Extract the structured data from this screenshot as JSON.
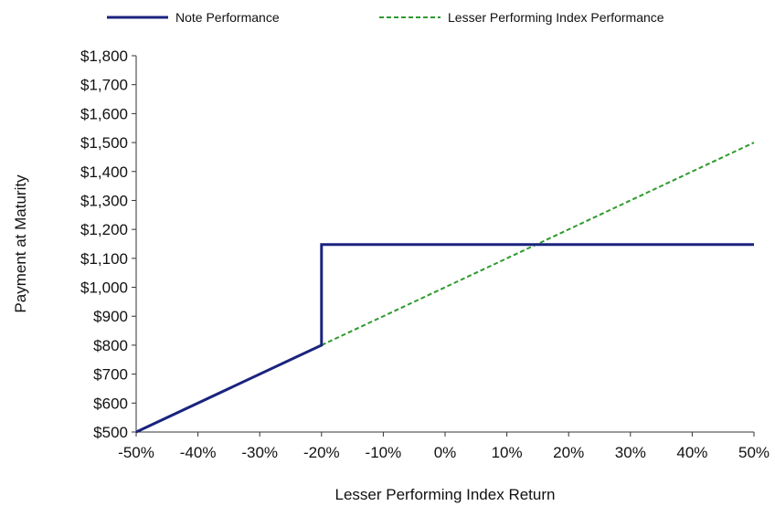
{
  "chart_data": {
    "type": "line",
    "xlabel": "Lesser Performing Index Return",
    "ylabel": "Payment at Maturity",
    "xlim": [
      -50,
      50
    ],
    "ylim": [
      500,
      1800
    ],
    "x_ticks": [
      -50,
      -40,
      -30,
      -20,
      -10,
      0,
      10,
      20,
      30,
      40,
      50
    ],
    "x_tick_labels": [
      "-50%",
      "-40%",
      "-30%",
      "-20%",
      "-10%",
      "0%",
      "10%",
      "20%",
      "30%",
      "40%",
      "50%"
    ],
    "y_ticks": [
      500,
      600,
      700,
      800,
      900,
      1000,
      1100,
      1200,
      1300,
      1400,
      1500,
      1600,
      1700,
      1800
    ],
    "y_tick_labels": [
      "$500",
      "$600",
      "$700",
      "$800",
      "$900",
      "$1,000",
      "$1,100",
      "$1,200",
      "$1,300",
      "$1,400",
      "$1,500",
      "$1,600",
      "$1,700",
      "$1,800"
    ],
    "grid": false,
    "legend_position": "top",
    "series": [
      {
        "name": "Note Performance",
        "color": "#1a237e",
        "style": "solid",
        "points": [
          [
            -50,
            500
          ],
          [
            -20,
            800
          ],
          [
            -20,
            1147.5
          ],
          [
            50,
            1147.5
          ]
        ]
      },
      {
        "name": "Lesser Performing Index Performance",
        "color": "#2e9a2e",
        "style": "dashed",
        "points": [
          [
            -50,
            500
          ],
          [
            50,
            1500
          ]
        ]
      }
    ]
  }
}
